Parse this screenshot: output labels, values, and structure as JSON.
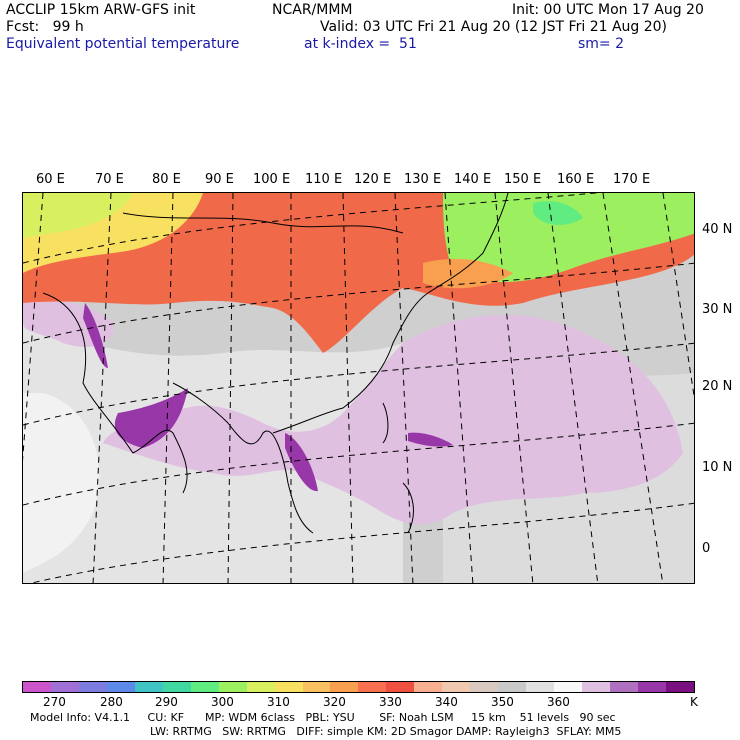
{
  "header": {
    "line1_left": "ACCLIP 15km ARW-GFS init",
    "line1_mid": "NCAR/MMM",
    "line1_right": "Init: 00 UTC Mon 17 Aug 20",
    "line2_left": "Fcst:   99 h",
    "line2_right": "Valid: 03 UTC Fri 21 Aug 20 (12 JST Fri 21 Aug 20)",
    "line3_left": "Equivalent potential temperature",
    "line3_mid": "at k-index =  51",
    "line3_right": "sm= 2"
  },
  "map": {
    "lon_labels": [
      "60 E",
      "70 E",
      "80 E",
      "90 E",
      "100 E",
      "110 E",
      "120 E",
      "130 E",
      "140 E",
      "150 E",
      "160 E",
      "170 E"
    ],
    "lat_labels": [
      "40 N",
      "30 N",
      "20 N",
      "10 N",
      "0"
    ]
  },
  "colorbar": {
    "colors": [
      "#cc55cc",
      "#a070d6",
      "#7d7de0",
      "#5d8ae8",
      "#3fc3c3",
      "#40d8a0",
      "#60ec80",
      "#9cf060",
      "#d8f060",
      "#f8e060",
      "#f8c060",
      "#f8a050",
      "#f87050",
      "#f05040",
      "#f8b090",
      "#f0c8b0",
      "#d8c8c0",
      "#c8c8c8",
      "#e0e0e0",
      "#f8f8f8",
      "#e0c0e0",
      "#b070c0",
      "#9838a8",
      "#7a1080"
    ],
    "labels": [
      "270",
      "280",
      "290",
      "300",
      "310",
      "320",
      "330",
      "340",
      "350",
      "360",
      "K"
    ]
  },
  "footer": {
    "line1": "Model Info: V4.1.1     CU: KF      MP: WDM 6class   PBL: YSU       SF: Noah LSM     15 km    51 levels   90 sec",
    "line2": "LW: RRTMG   SW: RRTMG   DIFF: simple KM: 2D Smagor DAMP: Rayleigh3  SFLAY: MM5"
  }
}
